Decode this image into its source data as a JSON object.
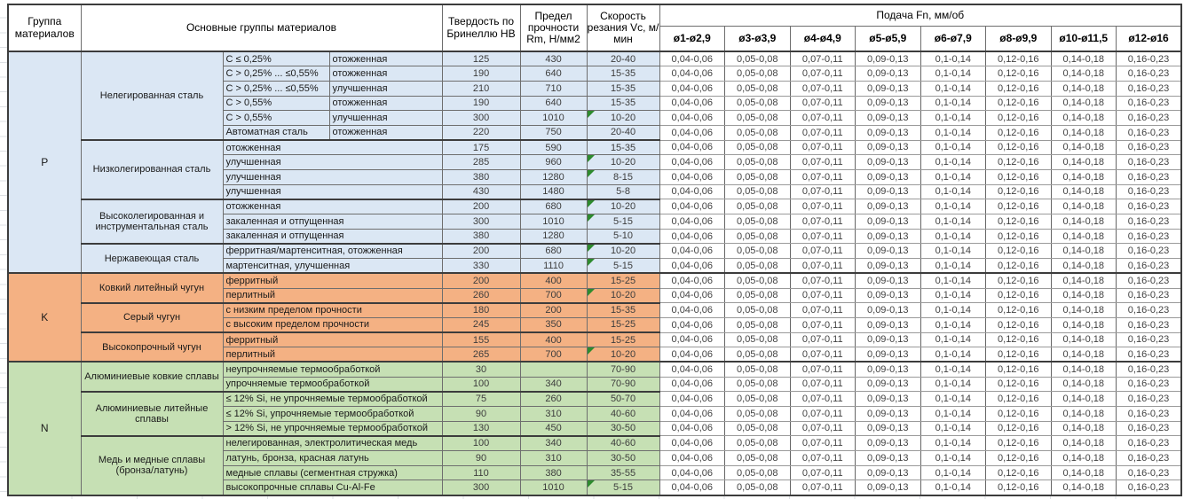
{
  "header": {
    "col_group": "Группа материалов",
    "col_materials": "Основные группы материалов",
    "col_hardness": "Твердость по Бринеллю HB",
    "col_strength": "Предел прочности Rm, Н/мм2",
    "col_speed": "Скорость резания Vc, м/мин",
    "feed_title": "Подача Fn, мм/об",
    "feed_columns": [
      "ø1-ø2,9",
      "ø3-ø3,9",
      "ø4-ø4,9",
      "ø5-ø5,9",
      "ø6-ø7,9",
      "ø8-ø9,9",
      "ø10-ø11,5",
      "ø12-ø16"
    ]
  },
  "feed_values": [
    "0,04-0,06",
    "0,05-0,08",
    "0,07-0,11",
    "0,09-0,13",
    "0,1-0,14",
    "0,12-0,16",
    "0,14-0,18",
    "0,16-0,23"
  ],
  "colors": {
    "group_p": "#dbe7f4",
    "group_k": "#f4b183",
    "group_n": "#c6e0b4",
    "marker_green": "#2e8b2e",
    "border_dark": "#3c3c3c"
  },
  "groups": [
    {
      "code": "P",
      "color_key": "group_p",
      "subgroups": [
        {
          "name": "Нелегированная сталь",
          "rows": [
            {
              "a": "C ≤ 0,25%",
              "b": "отожженная",
              "hb": "125",
              "rm": "430",
              "vc": "20-40",
              "m": false
            },
            {
              "a": "C > 0,25% ... ≤0,55%",
              "b": "отожженная",
              "hb": "190",
              "rm": "640",
              "vc": "15-35",
              "m": false
            },
            {
              "a": "C > 0,25% ... ≤0,55%",
              "b": "улучшенная",
              "hb": "210",
              "rm": "710",
              "vc": "15-35",
              "m": false
            },
            {
              "a": "C > 0,55%",
              "b": "отожженная",
              "hb": "190",
              "rm": "640",
              "vc": "15-35",
              "m": false
            },
            {
              "a": "C > 0,55%",
              "b": "улучшенная",
              "hb": "300",
              "rm": "1010",
              "vc": "10-20",
              "m": true
            },
            {
              "a": "Автоматная сталь",
              "b": "отожженная",
              "hb": "220",
              "rm": "750",
              "vc": "20-40",
              "m": false
            }
          ]
        },
        {
          "name": "Низколегированная сталь",
          "rows": [
            {
              "d": "отожженная",
              "hb": "175",
              "rm": "590",
              "vc": "15-35",
              "m": false
            },
            {
              "d": "улучшенная",
              "hb": "285",
              "rm": "960",
              "vc": "10-20",
              "m": true
            },
            {
              "d": "улучшенная",
              "hb": "380",
              "rm": "1280",
              "vc": "8-15",
              "m": true
            },
            {
              "d": "улучшенная",
              "hb": "430",
              "rm": "1480",
              "vc": "5-8",
              "m": false
            }
          ]
        },
        {
          "name": "Высоколегированная и инструментальная сталь",
          "rows": [
            {
              "d": "отожженная",
              "hb": "200",
              "rm": "680",
              "vc": "10-20",
              "m": true
            },
            {
              "d": "закаленная и отпущенная",
              "hb": "300",
              "rm": "1010",
              "vc": "5-15",
              "m": true
            },
            {
              "d": "закаленная и отпущенная",
              "hb": "380",
              "rm": "1280",
              "vc": "5-10",
              "m": false
            }
          ]
        },
        {
          "name": "Нержавеющая сталь",
          "rows": [
            {
              "d": "ферритная/мартенситная, отожженная",
              "hb": "200",
              "rm": "680",
              "vc": "10-20",
              "m": true
            },
            {
              "d": "мартенситная, улучшенная",
              "hb": "330",
              "rm": "1110",
              "vc": "5-15",
              "m": true
            }
          ]
        }
      ]
    },
    {
      "code": "K",
      "color_key": "group_k",
      "subgroups": [
        {
          "name": "Ковкий литейный чугун",
          "rows": [
            {
              "d": "ферритный",
              "hb": "200",
              "rm": "400",
              "vc": "15-25",
              "m": false
            },
            {
              "d": "перлитный",
              "hb": "260",
              "rm": "700",
              "vc": "10-20",
              "m": true
            }
          ]
        },
        {
          "name": "Серый чугун",
          "rows": [
            {
              "d": "с низким пределом прочности",
              "hb": "180",
              "rm": "200",
              "vc": "15-35",
              "m": false
            },
            {
              "d": "с высоким пределом прочности",
              "hb": "245",
              "rm": "350",
              "vc": "15-25",
              "m": false
            }
          ]
        },
        {
          "name": "Высокопрочный чугун",
          "rows": [
            {
              "d": "ферритный",
              "hb": "155",
              "rm": "400",
              "vc": "15-25",
              "m": false
            },
            {
              "d": "перлитный",
              "hb": "265",
              "rm": "700",
              "vc": "10-20",
              "m": true
            }
          ]
        }
      ]
    },
    {
      "code": "N",
      "color_key": "group_n",
      "subgroups": [
        {
          "name": "Алюминиевые ковкие сплавы",
          "rows": [
            {
              "d": "неупрочняемые термообработкой",
              "hb": "30",
              "rm": "",
              "vc": "70-90",
              "m": false
            },
            {
              "d": "упрочняемые термообработкой",
              "hb": "100",
              "rm": "340",
              "vc": "70-90",
              "m": false
            }
          ]
        },
        {
          "name": "Алюминиевые литейные сплавы",
          "rows": [
            {
              "d": "≤ 12% Si, не упрочняемые термообработкой",
              "hb": "75",
              "rm": "260",
              "vc": "50-70",
              "m": false
            },
            {
              "d": "≤ 12% Si, упрочняемые термообработкой",
              "hb": "90",
              "rm": "310",
              "vc": "40-60",
              "m": false
            },
            {
              "d": "> 12% Si, не упрочняемые термообработкой",
              "hb": "130",
              "rm": "450",
              "vc": "30-50",
              "m": false
            }
          ]
        },
        {
          "name": "Медь и медные сплавы (бронза/латунь)",
          "rows": [
            {
              "d": "нелегированная, электролитическая медь",
              "hb": "100",
              "rm": "340",
              "vc": "40-60",
              "m": false
            },
            {
              "d": "латунь, бронза, красная латунь",
              "hb": "90",
              "rm": "310",
              "vc": "30-50",
              "m": false
            },
            {
              "d": "медные сплавы (сегментная стружка)",
              "hb": "110",
              "rm": "380",
              "vc": "35-55",
              "m": false
            },
            {
              "d": "высокопрочные сплавы Cu-Al-Fe",
              "hb": "300",
              "rm": "1010",
              "vc": "5-15",
              "m": true
            }
          ]
        }
      ]
    }
  ]
}
